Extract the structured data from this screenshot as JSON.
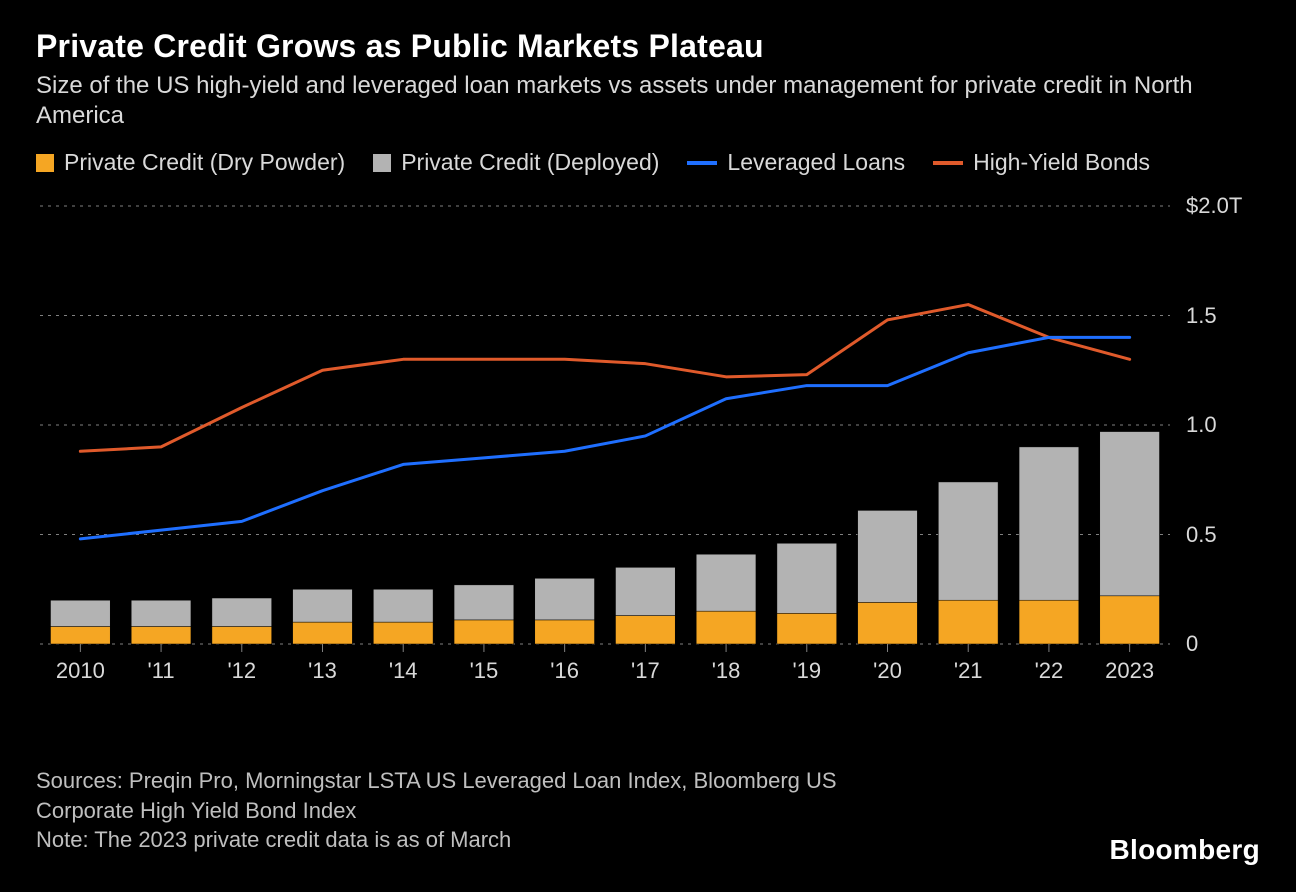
{
  "title": "Private Credit Grows as Public Markets Plateau",
  "subtitle": "Size of the US high-yield and leveraged loan markets vs assets under management for private credit in North America",
  "legend": {
    "dry": "Private Credit (Dry Powder)",
    "deployed": "Private Credit (Deployed)",
    "lev": "Leveraged Loans",
    "hy": "High-Yield Bonds"
  },
  "footer": {
    "line1": "Sources: Preqin Pro, Morningstar LSTA US Leveraged Loan Index, Bloomberg US",
    "line2": "Corporate High Yield Bond Index",
    "line3": "Note: The 2023 private credit data is as of March"
  },
  "brand": "Bloomberg",
  "chart": {
    "type": "combo-bar-line",
    "background": "#000000",
    "grid_color": "#808080",
    "grid_dash": "3,5",
    "text_color": "#d9d9d9",
    "colors": {
      "dry": "#f5a623",
      "deployed": "#b3b3b3",
      "lev": "#1f6fff",
      "hy": "#e05a2b"
    },
    "line_width": 3,
    "bar_group_width": 0.74,
    "bar_border": "#000000",
    "ylim": [
      0,
      2.0
    ],
    "ytick_step": 0.5,
    "y_labels": [
      "$2.0T",
      "1.5",
      "1.0",
      "0.5",
      "0"
    ],
    "x_labels": [
      "2010",
      "'11",
      "'12",
      "'13",
      "'14",
      "'15",
      "'16",
      "'17",
      "'18",
      "'19",
      "'20",
      "'21",
      "'22",
      "2023"
    ],
    "categories": [
      2010,
      2011,
      2012,
      2013,
      2014,
      2015,
      2016,
      2017,
      2018,
      2019,
      2020,
      2021,
      2022,
      2023
    ],
    "bars_dry": [
      0.08,
      0.08,
      0.08,
      0.1,
      0.1,
      0.11,
      0.11,
      0.13,
      0.15,
      0.14,
      0.19,
      0.2,
      0.2,
      0.22
    ],
    "bars_deployed": [
      0.12,
      0.12,
      0.13,
      0.15,
      0.15,
      0.16,
      0.19,
      0.22,
      0.26,
      0.32,
      0.42,
      0.54,
      0.7,
      0.75
    ],
    "line_lev": [
      0.48,
      0.52,
      0.56,
      0.7,
      0.82,
      0.85,
      0.88,
      0.95,
      1.12,
      1.18,
      1.18,
      1.33,
      1.4,
      1.4
    ],
    "line_hy": [
      0.88,
      0.9,
      1.08,
      1.25,
      1.3,
      1.3,
      1.3,
      1.28,
      1.22,
      1.23,
      1.48,
      1.55,
      1.4,
      1.3
    ]
  }
}
